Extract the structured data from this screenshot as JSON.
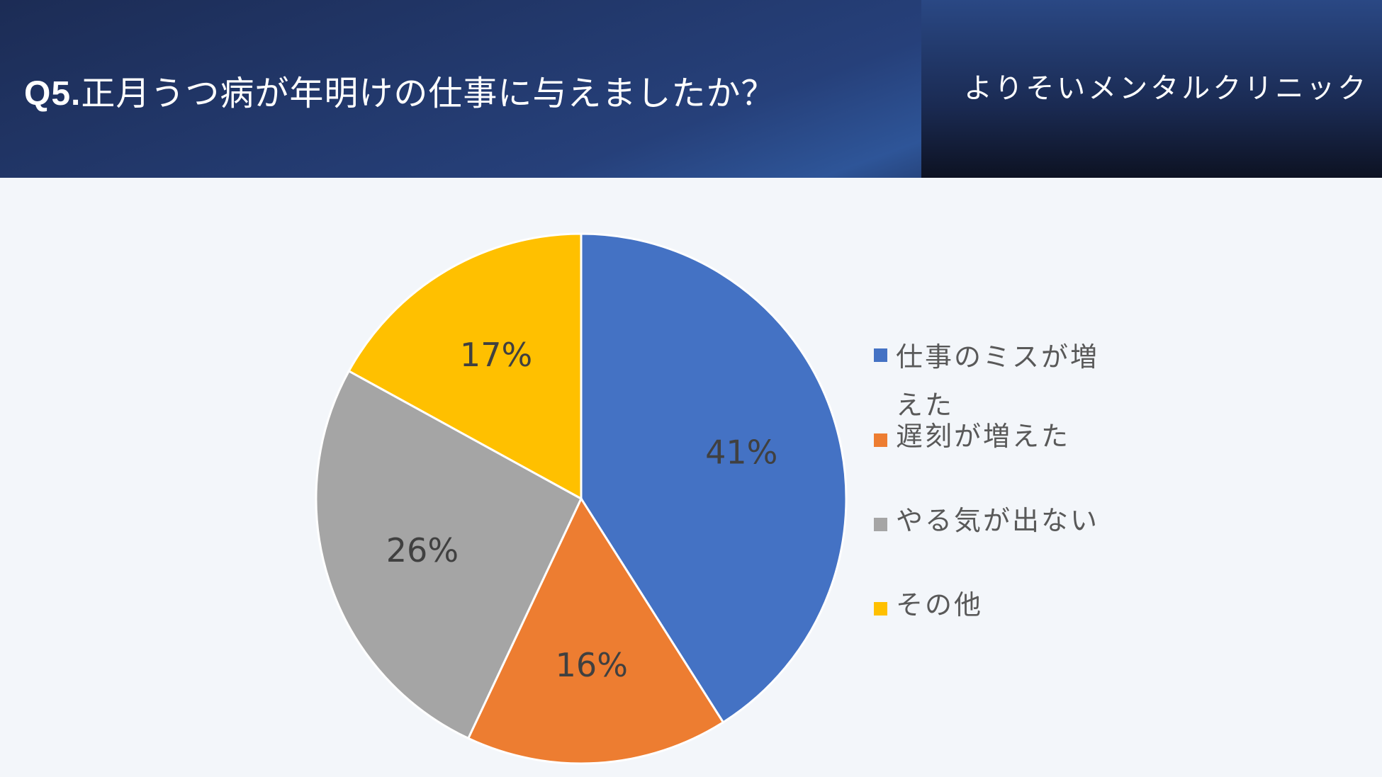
{
  "header": {
    "title_prefix": "Q5.",
    "title_text": "正月うつ病が年明けの仕事に与えましたか？",
    "clinic_name": "よりそいメンタルクリニック"
  },
  "chart_data": {
    "type": "pie",
    "categories": [
      "仕事のミスが増えた",
      "遅刻が増えた",
      "やる気が出ない",
      "その他"
    ],
    "values": [
      41,
      16,
      26,
      17
    ],
    "labels": [
      "41%",
      "16%",
      "26%",
      "17%"
    ],
    "colors": [
      "#4472c4",
      "#ed7d31",
      "#a5a5a5",
      "#ffc000"
    ],
    "start_angle": "12 o'clock",
    "direction": "clockwise",
    "legend_position": "right"
  }
}
